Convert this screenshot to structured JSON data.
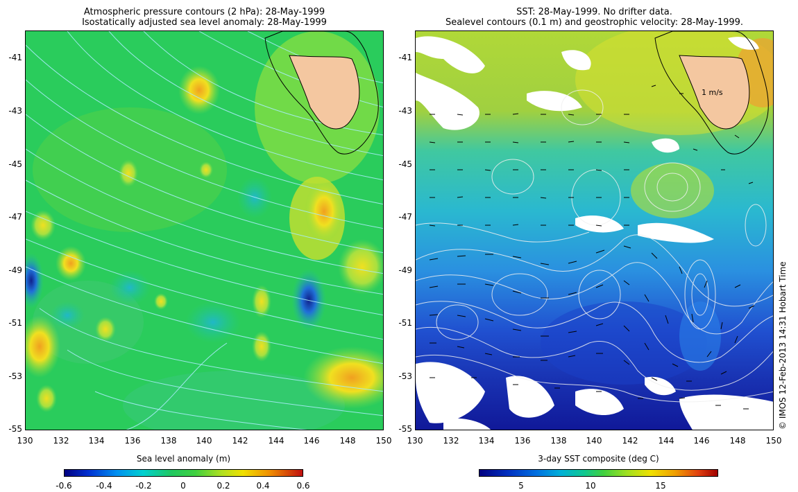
{
  "left_panel": {
    "title_line1": "Atmospheric pressure contours (2 hPa): 28-May-1999",
    "title_line2": "Isostatically adjusted sea level anomaly: 28-May-1999",
    "y_ticks": [
      "-41",
      "-43",
      "-45",
      "-47",
      "-49",
      "-51",
      "-53",
      "-55"
    ],
    "x_ticks": [
      "130",
      "132",
      "134",
      "136",
      "138",
      "140",
      "142",
      "144",
      "146",
      "148",
      "150"
    ],
    "colorbar_label": "Sea level anomaly (m)",
    "colorbar_ticks": [
      "-0.6",
      "-0.4",
      "-0.2",
      "0",
      "0.2",
      "0.4",
      "0.6"
    ],
    "field_color": "#1fd060",
    "land_color": "#f4c7a0",
    "contour_color": "#b0f0ff"
  },
  "right_panel": {
    "title_line1": "SST: 28-May-1999. No drifter data.",
    "title_line2": "Sealevel contours (0.1 m) and geostrophic velocity: 28-May-1999.",
    "y_ticks": [
      "-41",
      "-43",
      "-45",
      "-47",
      "-49",
      "-51",
      "-53",
      "-55"
    ],
    "x_ticks": [
      "130",
      "132",
      "134",
      "136",
      "138",
      "140",
      "142",
      "144",
      "146",
      "148",
      "150"
    ],
    "colorbar_label": "3-day SST composite (deg C)",
    "colorbar_ticks": [
      "5",
      "10",
      "15"
    ],
    "velocity_label": "1 m/s",
    "land_color": "#f4c7a0"
  },
  "credit": "© IMOS 12-Feb-2013 14:31 Hobart Time",
  "map_data": {
    "lon_range": [
      130,
      150
    ],
    "lat_range": [
      -55,
      -40
    ],
    "region": "Tasmania / Southern Ocean"
  }
}
